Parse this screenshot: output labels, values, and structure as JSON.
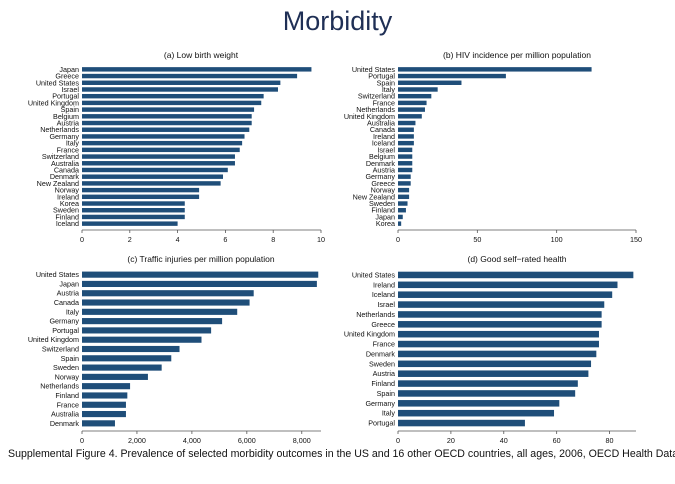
{
  "title": "Morbidity",
  "caption": "Supplemental Figure 4. Prevalence of selected morbidity outcomes in the US and 16 other OECD countries, all ages, 2006, OECD Health Data",
  "chart_data": [
    {
      "type": "bar",
      "orientation": "horizontal",
      "title": "(a) Low birth weight",
      "categories": [
        "Japan",
        "Greece",
        "United States",
        "Israel",
        "Portugal",
        "United Kingdom",
        "Spain",
        "Belgium",
        "Austria",
        "Netherlands",
        "Germany",
        "Italy",
        "France",
        "Switzerland",
        "Australia",
        "Canada",
        "Denmark",
        "New Zealand",
        "Norway",
        "Ireland",
        "Korea",
        "Sweden",
        "Finland",
        "Iceland"
      ],
      "values": [
        9.6,
        9.0,
        8.3,
        8.2,
        7.6,
        7.5,
        7.2,
        7.1,
        7.1,
        7.0,
        6.8,
        6.7,
        6.6,
        6.4,
        6.4,
        6.1,
        5.9,
        5.8,
        4.9,
        4.9,
        4.3,
        4.3,
        4.3,
        4.0
      ],
      "xlim": [
        0,
        10
      ],
      "xticks": [
        "0",
        "2",
        "4",
        "6",
        "8",
        "10"
      ],
      "xtick_values": [
        0,
        2,
        4,
        6,
        8,
        10
      ]
    },
    {
      "type": "bar",
      "orientation": "horizontal",
      "title": "(b) HIV incidence per million population",
      "categories": [
        "United States",
        "Portugal",
        "Spain",
        "Italy",
        "Switzerland",
        "France",
        "Netherlands",
        "United Kingdom",
        "Australia",
        "Canada",
        "Ireland",
        "Iceland",
        "Israel",
        "Belgium",
        "Denmark",
        "Austria",
        "Germany",
        "Greece",
        "Norway",
        "New Zealand",
        "Sweden",
        "Finland",
        "Japan",
        "Korea"
      ],
      "values": [
        122,
        68,
        40,
        25,
        21,
        18,
        17,
        15,
        11,
        10,
        10,
        10,
        9,
        9,
        9,
        9,
        8,
        8,
        7,
        7,
        6,
        5,
        3,
        2
      ],
      "xlim": [
        0,
        150
      ],
      "xticks": [
        "0",
        "50",
        "100",
        "150"
      ],
      "xtick_values": [
        0,
        50,
        100,
        150
      ]
    },
    {
      "type": "bar",
      "orientation": "horizontal",
      "title": "(c) Traffic injuries per million population",
      "categories": [
        "United States",
        "Japan",
        "Austria",
        "Canada",
        "Italy",
        "Germany",
        "Portugal",
        "United Kingdom",
        "Switzerland",
        "Spain",
        "Sweden",
        "Norway",
        "Netherlands",
        "Finland",
        "France",
        "Australia",
        "Denmark"
      ],
      "values": [
        8600,
        8550,
        6250,
        6100,
        5650,
        5100,
        4700,
        4350,
        3550,
        3250,
        2900,
        2400,
        1750,
        1650,
        1600,
        1600,
        1200
      ],
      "xlim": [
        0,
        8700
      ],
      "xticks": [
        "0",
        "2,000",
        "4,000",
        "6,000",
        "8,000"
      ],
      "xtick_values": [
        0,
        2000,
        4000,
        6000,
        8000
      ]
    },
    {
      "type": "bar",
      "orientation": "horizontal",
      "title": "(d) Good self−rated health",
      "categories": [
        "United States",
        "Ireland",
        "Iceland",
        "Israel",
        "Netherlands",
        "Greece",
        "United Kingdom",
        "France",
        "Denmark",
        "Sweden",
        "Austria",
        "Finland",
        "Spain",
        "Germany",
        "Italy",
        "Portugal"
      ],
      "values": [
        89,
        83,
        81,
        78,
        77,
        77,
        76,
        76,
        75,
        73,
        72,
        68,
        67,
        61,
        59,
        48
      ],
      "xlim": [
        0,
        90
      ],
      "xticks": [
        "0",
        "20",
        "40",
        "60",
        "80"
      ],
      "xtick_values": [
        0,
        20,
        40,
        60,
        80
      ]
    }
  ],
  "colors": {
    "bar": "#1f4e79",
    "title": "#1f2f55"
  }
}
